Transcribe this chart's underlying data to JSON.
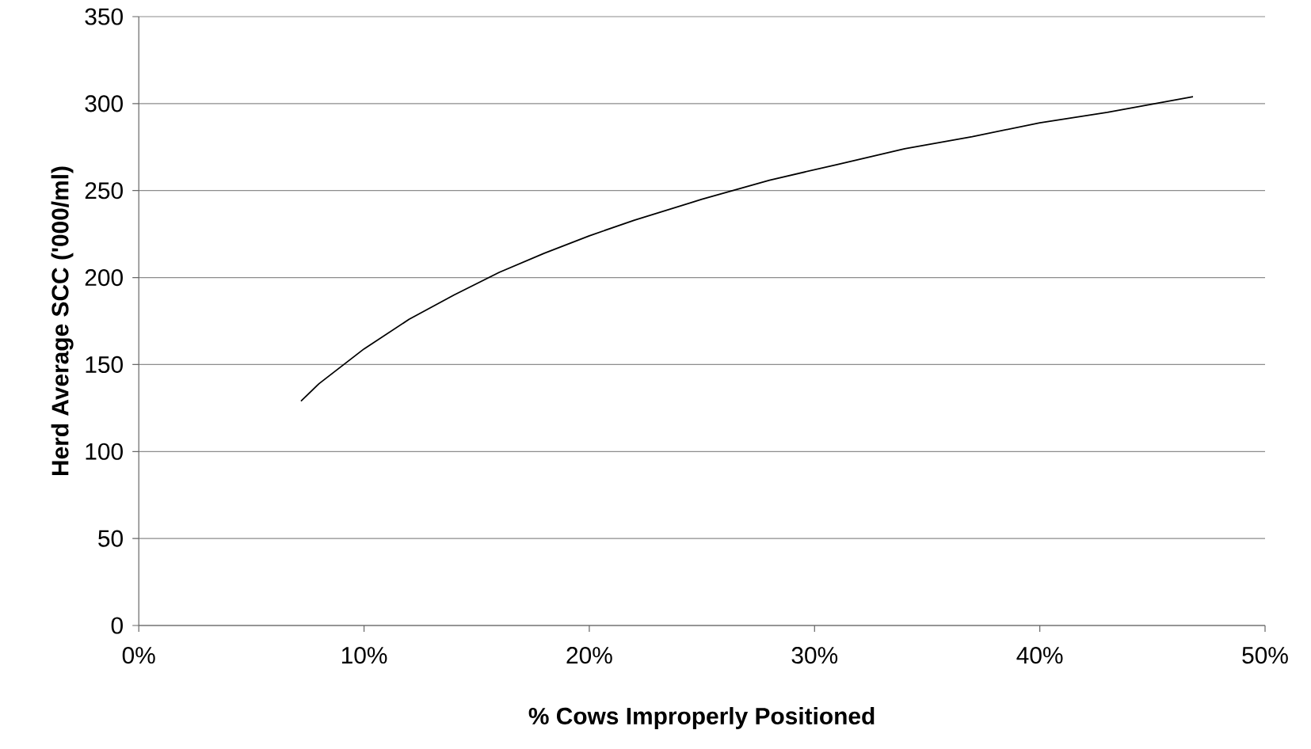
{
  "chart_data": {
    "type": "line",
    "xlabel": "% Cows Improperly Positioned",
    "ylabel": "Herd Average SCC ('000/ml)",
    "x": [
      7.2,
      8,
      9,
      10,
      12,
      14,
      16,
      18,
      20,
      22,
      25,
      28,
      31,
      34,
      37,
      40,
      43,
      46.8
    ],
    "series": [
      {
        "color": "#000000",
        "values": [
          129,
          139,
          149,
          159,
          176,
          190,
          203,
          214,
          224,
          233,
          245,
          256,
          265,
          274,
          281,
          289,
          295,
          304
        ]
      }
    ],
    "xlim": [
      0,
      50
    ],
    "ylim": [
      0,
      350
    ],
    "xticks": [
      {
        "value": 0,
        "label": "0%"
      },
      {
        "value": 10,
        "label": "10%"
      },
      {
        "value": 20,
        "label": "20%"
      },
      {
        "value": 30,
        "label": "30%"
      },
      {
        "value": 40,
        "label": "40%"
      },
      {
        "value": 50,
        "label": "50%"
      }
    ],
    "yticks": [
      0,
      50,
      100,
      150,
      200,
      250,
      300,
      350
    ],
    "grid": "y"
  }
}
